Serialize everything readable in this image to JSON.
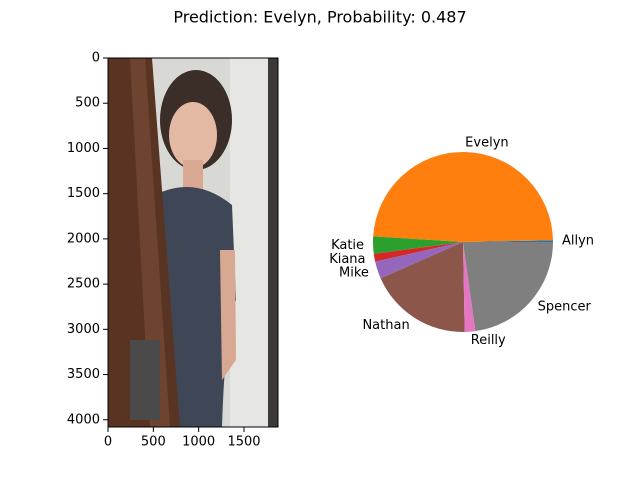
{
  "title": "Prediction: Evelyn, Probability: 0.487",
  "chart_data": [
    {
      "type": "image",
      "xlim": [
        0,
        1875
      ],
      "ylim": [
        4080,
        0
      ],
      "xticks": [
        0,
        500,
        1000,
        1500
      ],
      "yticks": [
        0,
        500,
        1000,
        1500,
        2000,
        2500,
        3000,
        3500,
        4000
      ]
    },
    {
      "type": "pie",
      "categories": [
        "Allyn",
        "Evelyn",
        "Katie",
        "Kiana",
        "Mike",
        "Nathan",
        "Reilly",
        "Spencer"
      ],
      "values": [
        0.003,
        0.487,
        0.031,
        0.014,
        0.031,
        0.187,
        0.019,
        0.228
      ],
      "colors": [
        "#1f77b4",
        "#ff7f0e",
        "#2ca02c",
        "#d62728",
        "#9467bd",
        "#8c564b",
        "#e377c2",
        "#7f7f7f"
      ]
    }
  ]
}
